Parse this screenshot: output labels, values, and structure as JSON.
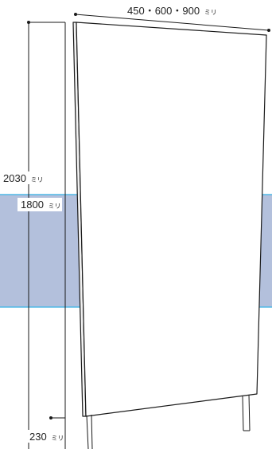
{
  "dimensions": {
    "width": {
      "value": "450・600・900",
      "unit": "ミリ"
    },
    "total_height": {
      "value": "2030",
      "unit": "ミリ"
    },
    "band_height": {
      "value": "1800",
      "unit": "ミリ"
    },
    "leg_height": {
      "value": "230",
      "unit": "ミリ"
    }
  },
  "colors": {
    "band_fill": "#b3c0dc",
    "band_edge": "#4fb8e6",
    "line": "#1a1a1a"
  }
}
